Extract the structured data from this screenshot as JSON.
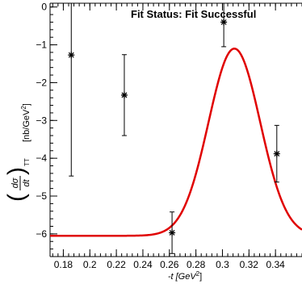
{
  "chart_data": {
    "type": "scatter",
    "status_text": "Fit Status: Fit Successful",
    "xlabel_prefix": "-t [GeV",
    "xlabel_sup": "2",
    "xlabel_suffix": "]",
    "ylabel_units_prefix": "[nb/GeV",
    "ylabel_units_sup": "2",
    "ylabel_units_suffix": "]",
    "ylabel_frac_num": "dσ",
    "ylabel_frac_den": "dt",
    "ylabel_subscript": "TT",
    "xlim": [
      0.17,
      0.36
    ],
    "ylim": [
      -6.6,
      0.1
    ],
    "x_ticks": [
      {
        "value": 0.18,
        "label": "0.18"
      },
      {
        "value": 0.2,
        "label": "0.2"
      },
      {
        "value": 0.22,
        "label": "0.22"
      },
      {
        "value": 0.24,
        "label": "0.24"
      },
      {
        "value": 0.26,
        "label": "0.26"
      },
      {
        "value": 0.28,
        "label": "0.28"
      },
      {
        "value": 0.3,
        "label": "0.3"
      },
      {
        "value": 0.32,
        "label": "0.32"
      },
      {
        "value": 0.34,
        "label": "0.34"
      }
    ],
    "y_ticks": [
      {
        "value": 0,
        "label": "0"
      },
      {
        "value": -1,
        "label": "−1"
      },
      {
        "value": -2,
        "label": "−2"
      },
      {
        "value": -3,
        "label": "−3"
      },
      {
        "value": -4,
        "label": "−4"
      },
      {
        "value": -5,
        "label": "−5"
      },
      {
        "value": -6,
        "label": "−6"
      }
    ],
    "points": [
      {
        "x": 0.186,
        "y": -1.27,
        "err": 3.2
      },
      {
        "x": 0.226,
        "y": -2.33,
        "err": 1.07
      },
      {
        "x": 0.262,
        "y": -5.97,
        "err": 0.55
      },
      {
        "x": 0.301,
        "y": -0.4,
        "err": 0.65
      },
      {
        "x": 0.341,
        "y": -3.88,
        "err": 0.75
      }
    ],
    "fit_curve": {
      "color": "#e00000",
      "model": "gaussian-plus-constant",
      "baseline": -6.05,
      "amplitude": 4.95,
      "mean": 0.309,
      "sigma": 0.0195
    },
    "marker_color": "#000000"
  }
}
